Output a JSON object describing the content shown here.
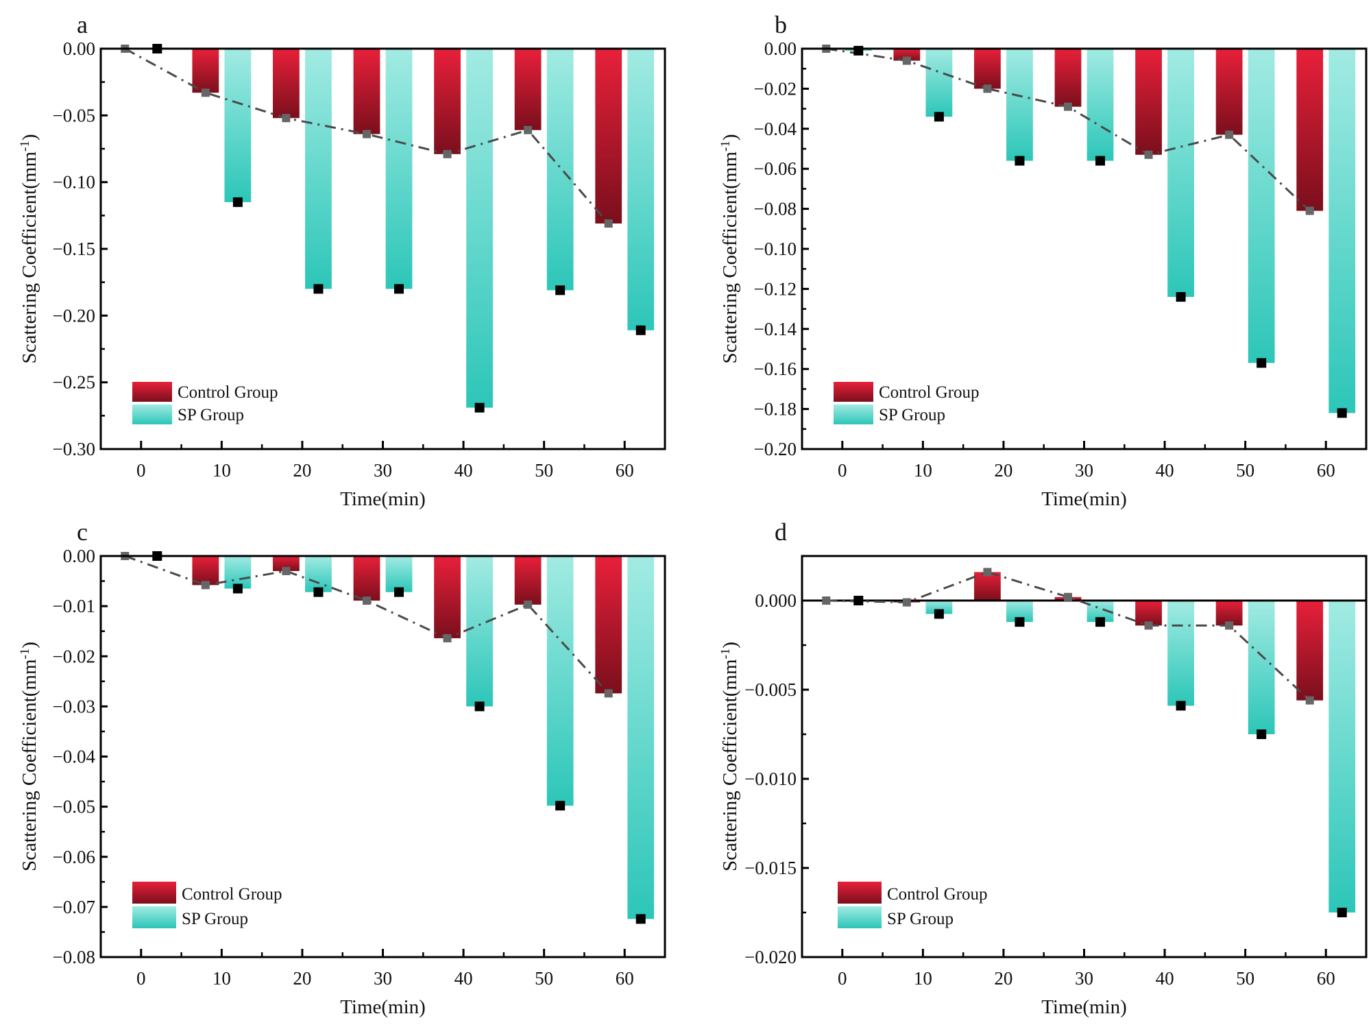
{
  "chart_data": [
    {
      "panel": "a",
      "type": "bar",
      "xlabel": "Time(min)",
      "ylabel": "Scattering Coefficient(mm-1)",
      "ylabel_base": "Scattering Coefficient(mm",
      "ylabel_sup": "-1",
      "ylabel_close": ")",
      "categories": [
        0,
        10,
        20,
        30,
        40,
        50,
        60
      ],
      "xticks": [
        "0",
        "10",
        "20",
        "30",
        "40",
        "50",
        "60"
      ],
      "ylim": [
        -0.3,
        0.0
      ],
      "yticks": [
        0.0,
        -0.05,
        -0.1,
        -0.15,
        -0.2,
        -0.25,
        -0.3
      ],
      "ytick_labels": [
        "0.00",
        "−0.05",
        "−0.10",
        "−0.15",
        "−0.20",
        "−0.25",
        "−0.30"
      ],
      "series": [
        {
          "name": "Control Group",
          "values": [
            0.0,
            -0.033,
            -0.052,
            -0.064,
            -0.079,
            -0.061,
            -0.131
          ]
        },
        {
          "name": "SP Group",
          "values": [
            0.0,
            -0.115,
            -0.18,
            -0.18,
            -0.269,
            -0.181,
            -0.211
          ]
        }
      ],
      "trend_line": "Control Group (dash-dot)",
      "legend_position": "bottom-left",
      "zero_line": false
    },
    {
      "panel": "b",
      "type": "bar",
      "xlabel": "Time(min)",
      "ylabel": "Scattering Coefficient(mm-1)",
      "ylabel_base": "Scattering Coefficient(mm",
      "ylabel_sup": "-1",
      "ylabel_close": ")",
      "categories": [
        0,
        10,
        20,
        30,
        40,
        50,
        60
      ],
      "xticks": [
        "0",
        "10",
        "20",
        "30",
        "40",
        "50",
        "60"
      ],
      "ylim": [
        -0.2,
        0.0
      ],
      "yticks": [
        0.0,
        -0.02,
        -0.04,
        -0.06,
        -0.08,
        -0.1,
        -0.12,
        -0.14,
        -0.16,
        -0.18,
        -0.2
      ],
      "ytick_labels": [
        "0.00",
        "−0.02",
        "−0.04",
        "−0.06",
        "−0.08",
        "−0.10",
        "−0.12",
        "−0.14",
        "−0.16",
        "−0.18",
        "−0.20"
      ],
      "series": [
        {
          "name": "Control Group",
          "values": [
            0.0,
            -0.006,
            -0.02,
            -0.029,
            -0.053,
            -0.043,
            -0.081
          ]
        },
        {
          "name": "SP Group",
          "values": [
            -0.001,
            -0.034,
            -0.056,
            -0.056,
            -0.124,
            -0.157,
            -0.182
          ]
        }
      ],
      "trend_line": "Control Group (dash-dot)",
      "legend_position": "bottom-left",
      "zero_line": false
    },
    {
      "panel": "c",
      "type": "bar",
      "xlabel": "Time(min)",
      "ylabel": "Scattering Coefficient(mm-1)",
      "ylabel_base": "Scattering Coefficient(mm",
      "ylabel_sup": "-1",
      "ylabel_close": ")",
      "categories": [
        0,
        10,
        20,
        30,
        40,
        50,
        60
      ],
      "xticks": [
        "0",
        "10",
        "20",
        "30",
        "40",
        "50",
        "60"
      ],
      "ylim": [
        -0.08,
        0.0
      ],
      "yticks": [
        0.0,
        -0.01,
        -0.02,
        -0.03,
        -0.04,
        -0.05,
        -0.06,
        -0.07,
        -0.08
      ],
      "ytick_labels": [
        "0.00",
        "−0.01",
        "−0.02",
        "−0.03",
        "−0.04",
        "−0.05",
        "−0.06",
        "−0.07",
        "−0.08"
      ],
      "series": [
        {
          "name": "Control Group",
          "values": [
            0.0,
            -0.0058,
            -0.003,
            -0.0089,
            -0.0164,
            -0.0097,
            -0.0274
          ]
        },
        {
          "name": "SP Group",
          "values": [
            0.0,
            -0.0065,
            -0.0072,
            -0.0072,
            -0.03,
            -0.0498,
            -0.0724
          ]
        }
      ],
      "trend_line": "Control Group (dash-dot)",
      "legend_position": "bottom-left",
      "zero_line": false
    },
    {
      "panel": "d",
      "type": "bar",
      "xlabel": "Time(min)",
      "ylabel": "Scattering Coefficient(mm-1)",
      "ylabel_base": "Scattering Coefficient(mm",
      "ylabel_sup": "-1",
      "ylabel_close": ")",
      "categories": [
        0,
        10,
        20,
        30,
        40,
        50,
        60
      ],
      "xticks": [
        "0",
        "10",
        "20",
        "30",
        "40",
        "50",
        "60"
      ],
      "ylim": [
        -0.02,
        0.0025
      ],
      "yticks": [
        0.0,
        -0.005,
        -0.01,
        -0.015,
        -0.02
      ],
      "ytick_labels": [
        "0.000",
        "−0.005",
        "−0.010",
        "−0.015",
        "−0.020"
      ],
      "series": [
        {
          "name": "Control Group",
          "values": [
            0.0,
            -0.0001,
            0.0016,
            0.0002,
            -0.0014,
            -0.0014,
            -0.0056
          ]
        },
        {
          "name": "SP Group",
          "values": [
            0.0,
            -0.00075,
            -0.0012,
            -0.0012,
            -0.0059,
            -0.0075,
            -0.0175
          ]
        }
      ],
      "trend_line": "Control Group (dash-dot)",
      "legend_position": "bottom-left",
      "zero_line": true
    }
  ],
  "legend": {
    "control": "Control Group",
    "sp": "SP Group"
  },
  "colors": {
    "control_top": "#e8203a",
    "control_bottom": "#7a0f1c",
    "sp_top": "#a2ebe3",
    "sp_bottom": "#2cc6b8",
    "trend_line": "#4a4a4a",
    "control_marker": "#666666",
    "sp_marker": "#000000"
  }
}
